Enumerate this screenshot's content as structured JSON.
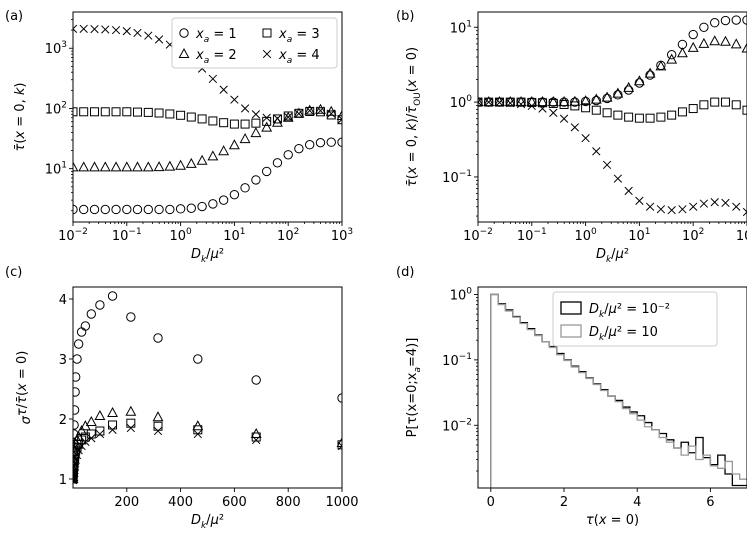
{
  "figure": {
    "panel_labels": [
      "(a)",
      "(b)",
      "(c)",
      "(d)"
    ]
  },
  "chart_data": [
    {
      "panel": "(a)",
      "type": "scatter",
      "xscale": "log",
      "yscale": "log",
      "xlim": [
        0.01,
        1000
      ],
      "ylim": [
        1.3,
        4000
      ],
      "xlabel": "D_k/μ²",
      "ylabel": "τ̄(x = 0, k)",
      "xticks": [
        0.01,
        0.1,
        1,
        10,
        100,
        1000
      ],
      "xtick_labels": [
        [
          "10",
          "−2"
        ],
        [
          "10",
          "−1"
        ],
        [
          "10",
          "0"
        ],
        [
          "10",
          "1"
        ],
        [
          "10",
          "2"
        ],
        [
          "10",
          "3"
        ]
      ],
      "yticks": [
        10,
        100,
        1000
      ],
      "ytick_labels": [
        [
          "10",
          "1"
        ],
        [
          "10",
          "2"
        ],
        [
          "10",
          "3"
        ]
      ],
      "legend": {
        "position": "upper-right",
        "columns": 2
      },
      "series": [
        {
          "name": "x_a = 1",
          "marker": "circle",
          "x": [
            0.01,
            0.0158,
            0.0251,
            0.0398,
            0.0631,
            0.1,
            0.158,
            0.251,
            0.398,
            0.631,
            1,
            1.58,
            2.51,
            3.98,
            6.31,
            10,
            15.8,
            25.1,
            39.8,
            63.1,
            100,
            158,
            251,
            398,
            631,
            1000
          ],
          "y": [
            2.1,
            2.1,
            2.1,
            2.1,
            2.1,
            2.1,
            2.1,
            2.1,
            2.1,
            2.1,
            2.15,
            2.2,
            2.35,
            2.6,
            3.0,
            3.7,
            4.8,
            6.5,
            9.0,
            12.5,
            17.0,
            21.5,
            25.0,
            27.0,
            27.5,
            27.5
          ]
        },
        {
          "name": "x_a = 2",
          "marker": "triangle",
          "x": [
            0.01,
            0.0158,
            0.0251,
            0.0398,
            0.0631,
            0.1,
            0.158,
            0.251,
            0.398,
            0.631,
            1,
            1.58,
            2.51,
            3.98,
            6.31,
            10,
            15.8,
            25.1,
            39.8,
            63.1,
            100,
            158,
            251,
            398,
            631,
            1000
          ],
          "y": [
            10.5,
            10.5,
            10.5,
            10.5,
            10.5,
            10.5,
            10.5,
            10.5,
            10.6,
            10.8,
            11.2,
            12.0,
            13.5,
            16.0,
            19.5,
            24.5,
            31.0,
            39.0,
            48.0,
            58.0,
            70.0,
            82.0,
            92.0,
            95.0,
            88.0,
            75.0
          ]
        },
        {
          "name": "x_a = 3",
          "marker": "square",
          "x": [
            0.01,
            0.0158,
            0.0251,
            0.0398,
            0.0631,
            0.1,
            0.158,
            0.251,
            0.398,
            0.631,
            1,
            1.58,
            2.51,
            3.98,
            6.31,
            10,
            15.8,
            25.1,
            39.8,
            63.1,
            100,
            158,
            251,
            398,
            631,
            1000
          ],
          "y": [
            88,
            88,
            88,
            88,
            88,
            88,
            87,
            86,
            84,
            81,
            77,
            72,
            67,
            62,
            58,
            55,
            55,
            57,
            61,
            67,
            75,
            83,
            89,
            88,
            78,
            65
          ]
        },
        {
          "name": "x_a = 4",
          "marker": "x",
          "x": [
            0.01,
            0.0158,
            0.0251,
            0.0398,
            0.0631,
            0.1,
            0.158,
            0.251,
            0.398,
            0.631,
            1,
            1.58,
            2.51,
            3.98,
            6.31,
            10,
            15.8,
            25.1,
            39.8,
            63.1,
            100,
            158,
            251,
            398,
            631,
            1000
          ],
          "y": [
            2100,
            2100,
            2080,
            2050,
            2000,
            1920,
            1800,
            1620,
            1400,
            1150,
            900,
            660,
            460,
            310,
            205,
            140,
            100,
            80,
            70,
            68,
            72,
            82,
            92,
            92,
            82,
            66
          ]
        }
      ]
    },
    {
      "panel": "(b)",
      "type": "scatter",
      "xscale": "log",
      "yscale": "log",
      "xlim": [
        0.01,
        1000
      ],
      "ylim": [
        0.025,
        16
      ],
      "xlabel": "D_k/μ²",
      "ylabel": "τ̄(x = 0, k)/τ̄_OU(x = 0)",
      "xticks": [
        0.01,
        0.1,
        1,
        10,
        100,
        1000
      ],
      "xtick_labels": [
        [
          "10",
          "−2"
        ],
        [
          "10",
          "−1"
        ],
        [
          "10",
          "0"
        ],
        [
          "10",
          "1"
        ],
        [
          "10",
          "2"
        ],
        [
          "10",
          "3"
        ]
      ],
      "yticks": [
        0.1,
        1,
        10
      ],
      "ytick_labels": [
        [
          "10",
          "−1"
        ],
        [
          "10",
          "0"
        ],
        [
          "10",
          "1"
        ]
      ],
      "series": [
        {
          "name": "x_a = 1",
          "marker": "circle",
          "x": [
            0.01,
            0.0158,
            0.0251,
            0.0398,
            0.0631,
            0.1,
            0.158,
            0.251,
            0.398,
            0.631,
            1,
            1.58,
            2.51,
            3.98,
            6.31,
            10,
            15.8,
            25.1,
            39.8,
            63.1,
            100,
            158,
            251,
            398,
            631,
            1000
          ],
          "y": [
            1.0,
            1.0,
            1.0,
            1.0,
            1.0,
            1.0,
            1.0,
            1.0,
            1.0,
            1.0,
            1.02,
            1.05,
            1.12,
            1.25,
            1.45,
            1.8,
            2.3,
            3.1,
            4.3,
            5.9,
            8.0,
            10.0,
            11.5,
            12.3,
            12.5,
            12.5
          ]
        },
        {
          "name": "x_a = 2",
          "marker": "triangle",
          "x": [
            0.01,
            0.0158,
            0.0251,
            0.0398,
            0.0631,
            0.1,
            0.158,
            0.251,
            0.398,
            0.631,
            1,
            1.58,
            2.51,
            3.98,
            6.31,
            10,
            15.8,
            25.1,
            39.8,
            63.1,
            100,
            158,
            251,
            398,
            631,
            1000
          ],
          "y": [
            1.0,
            1.0,
            1.0,
            1.0,
            1.0,
            1.0,
            1.0,
            1.0,
            1.0,
            1.01,
            1.03,
            1.08,
            1.15,
            1.3,
            1.55,
            1.9,
            2.4,
            3.0,
            3.7,
            4.5,
            5.3,
            6.0,
            6.5,
            6.4,
            5.9,
            5.2
          ]
        },
        {
          "name": "x_a = 3",
          "marker": "square",
          "x": [
            0.01,
            0.0158,
            0.0251,
            0.0398,
            0.0631,
            0.1,
            0.158,
            0.251,
            0.398,
            0.631,
            1,
            1.58,
            2.51,
            3.98,
            6.31,
            10,
            15.8,
            25.1,
            39.8,
            63.1,
            100,
            158,
            251,
            398,
            631,
            1000
          ],
          "y": [
            1.0,
            1.0,
            1.0,
            1.0,
            1.0,
            0.99,
            0.98,
            0.96,
            0.93,
            0.89,
            0.84,
            0.78,
            0.72,
            0.67,
            0.63,
            0.61,
            0.61,
            0.63,
            0.67,
            0.74,
            0.82,
            0.92,
            1.0,
            1.0,
            0.92,
            0.78
          ]
        },
        {
          "name": "x_a = 4",
          "marker": "x",
          "x": [
            0.01,
            0.0158,
            0.0251,
            0.0398,
            0.0631,
            0.1,
            0.158,
            0.251,
            0.398,
            0.631,
            1,
            1.58,
            2.51,
            3.98,
            6.31,
            10,
            15.8,
            25.1,
            39.8,
            63.1,
            100,
            158,
            251,
            398,
            631,
            1000
          ],
          "y": [
            1.0,
            1.0,
            0.99,
            0.97,
            0.94,
            0.89,
            0.82,
            0.72,
            0.6,
            0.46,
            0.33,
            0.22,
            0.145,
            0.095,
            0.065,
            0.048,
            0.04,
            0.037,
            0.036,
            0.037,
            0.04,
            0.044,
            0.046,
            0.045,
            0.04,
            0.034
          ]
        }
      ]
    },
    {
      "panel": "(c)",
      "type": "scatter",
      "xscale": "linear",
      "yscale": "linear",
      "xlim": [
        0,
        1000
      ],
      "ylim": [
        0.85,
        4.2
      ],
      "xlabel": "D_k/μ²",
      "ylabel": "σ_τ/τ̄(x = 0)",
      "xticks": [
        200,
        400,
        600,
        800,
        1000
      ],
      "xtick_labels": [
        "200",
        "400",
        "600",
        "800",
        "1000"
      ],
      "yticks": [
        1,
        2,
        3,
        4
      ],
      "ytick_labels": [
        "1",
        "2",
        "3",
        "4"
      ],
      "series": [
        {
          "name": "x_a = 1",
          "marker": "circle",
          "x": [
            0.01,
            0.1,
            0.5,
            1,
            2,
            3,
            4,
            6,
            8,
            10,
            15,
            21,
            32,
            46,
            68,
            100,
            147,
            215,
            316,
            464,
            681,
            1000
          ],
          "y": [
            1.02,
            1.1,
            1.3,
            1.45,
            1.6,
            1.75,
            1.9,
            2.15,
            2.45,
            2.7,
            3.0,
            3.25,
            3.45,
            3.55,
            3.75,
            3.9,
            4.05,
            3.7,
            3.35,
            3.0,
            2.65,
            2.35
          ]
        },
        {
          "name": "x_a = 2",
          "marker": "triangle",
          "x": [
            0.01,
            0.1,
            0.5,
            1,
            2,
            3,
            4,
            6,
            8,
            10,
            15,
            21,
            32,
            46,
            68,
            100,
            147,
            215,
            316,
            464,
            681,
            1000
          ],
          "y": [
            1.0,
            1.03,
            1.1,
            1.15,
            1.22,
            1.3,
            1.38,
            1.45,
            1.52,
            1.58,
            1.65,
            1.7,
            1.8,
            1.88,
            1.95,
            2.05,
            2.1,
            2.12,
            2.03,
            1.88,
            1.75,
            1.6
          ]
        },
        {
          "name": "x_a = 3",
          "marker": "square",
          "x": [
            0.01,
            0.1,
            0.5,
            1,
            2,
            3,
            4,
            6,
            8,
            10,
            15,
            21,
            32,
            46,
            68,
            100,
            147,
            215,
            316,
            464,
            681,
            1000
          ],
          "y": [
            1.0,
            1.02,
            1.05,
            1.1,
            1.15,
            1.2,
            1.28,
            1.35,
            1.42,
            1.48,
            1.53,
            1.58,
            1.65,
            1.7,
            1.75,
            1.8,
            1.9,
            1.93,
            1.88,
            1.82,
            1.7,
            1.57
          ]
        },
        {
          "name": "x_a = 4",
          "marker": "x",
          "x": [
            0.01,
            0.1,
            0.5,
            1,
            2,
            3,
            4,
            6,
            8,
            10,
            15,
            21,
            32,
            46,
            68,
            100,
            147,
            215,
            316,
            464,
            681,
            1000
          ],
          "y": [
            0.98,
            1.0,
            1.02,
            1.05,
            1.08,
            1.12,
            1.15,
            1.2,
            1.26,
            1.32,
            1.4,
            1.48,
            1.55,
            1.62,
            1.68,
            1.75,
            1.82,
            1.85,
            1.8,
            1.75,
            1.65,
            1.55
          ]
        }
      ]
    },
    {
      "panel": "(d)",
      "type": "line",
      "xscale": "linear",
      "yscale": "log",
      "xlim": [
        -0.35,
        7
      ],
      "ylim": [
        0.0011,
        1.3
      ],
      "xlabel": "τ(x = 0)",
      "ylabel": "P[τ(x=0;x_a=4)]",
      "xticks": [
        0,
        2,
        4,
        6
      ],
      "xtick_labels": [
        "0",
        "2",
        "4",
        "6"
      ],
      "yticks": [
        0.01,
        0.1,
        1
      ],
      "ytick_labels": [
        [
          "10",
          "−2"
        ],
        [
          "10",
          "−1"
        ],
        [
          "10",
          "0"
        ]
      ],
      "legend": {
        "position": "upper-right",
        "columns": 1
      },
      "series": [
        {
          "name": "D_k/μ² = 10⁻²",
          "color": "#000000",
          "x": [
            0,
            0.2,
            0.4,
            0.6,
            0.8,
            1.0,
            1.2,
            1.4,
            1.6,
            1.8,
            2.0,
            2.2,
            2.4,
            2.6,
            2.8,
            3.0,
            3.2,
            3.4,
            3.6,
            3.8,
            4.0,
            4.2,
            4.4,
            4.6,
            4.8,
            5.0,
            5.2,
            5.4,
            5.6,
            5.8,
            6.0,
            6.2,
            6.4,
            6.6,
            6.8,
            7.0
          ],
          "y": [
            1.0,
            0.72,
            0.58,
            0.46,
            0.37,
            0.3,
            0.24,
            0.19,
            0.16,
            0.125,
            0.1,
            0.08,
            0.066,
            0.053,
            0.043,
            0.035,
            0.028,
            0.024,
            0.019,
            0.016,
            0.014,
            0.011,
            0.0085,
            0.0075,
            0.006,
            0.0045,
            0.0055,
            0.0038,
            0.0065,
            0.0032,
            0.0025,
            0.0035,
            0.0018,
            0.0012,
            0.0012,
            0.0012
          ]
        },
        {
          "name": "D_k/μ² = 10",
          "color": "#999999",
          "x": [
            0,
            0.2,
            0.4,
            0.6,
            0.8,
            1.0,
            1.2,
            1.4,
            1.6,
            1.8,
            2.0,
            2.2,
            2.4,
            2.6,
            2.8,
            3.0,
            3.2,
            3.4,
            3.6,
            3.8,
            4.0,
            4.2,
            4.4,
            4.6,
            4.8,
            5.0,
            5.2,
            5.4,
            5.6,
            5.8,
            6.0,
            6.2,
            6.4,
            6.6,
            6.8,
            7.0
          ],
          "y": [
            1.0,
            0.7,
            0.56,
            0.45,
            0.36,
            0.29,
            0.235,
            0.19,
            0.155,
            0.12,
            0.098,
            0.078,
            0.064,
            0.052,
            0.042,
            0.034,
            0.028,
            0.023,
            0.018,
            0.015,
            0.012,
            0.0095,
            0.0085,
            0.0065,
            0.0055,
            0.0045,
            0.0035,
            0.0048,
            0.003,
            0.0035,
            0.0024,
            0.0022,
            0.0028,
            0.0018,
            0.0015,
            0.0015
          ]
        }
      ]
    }
  ]
}
